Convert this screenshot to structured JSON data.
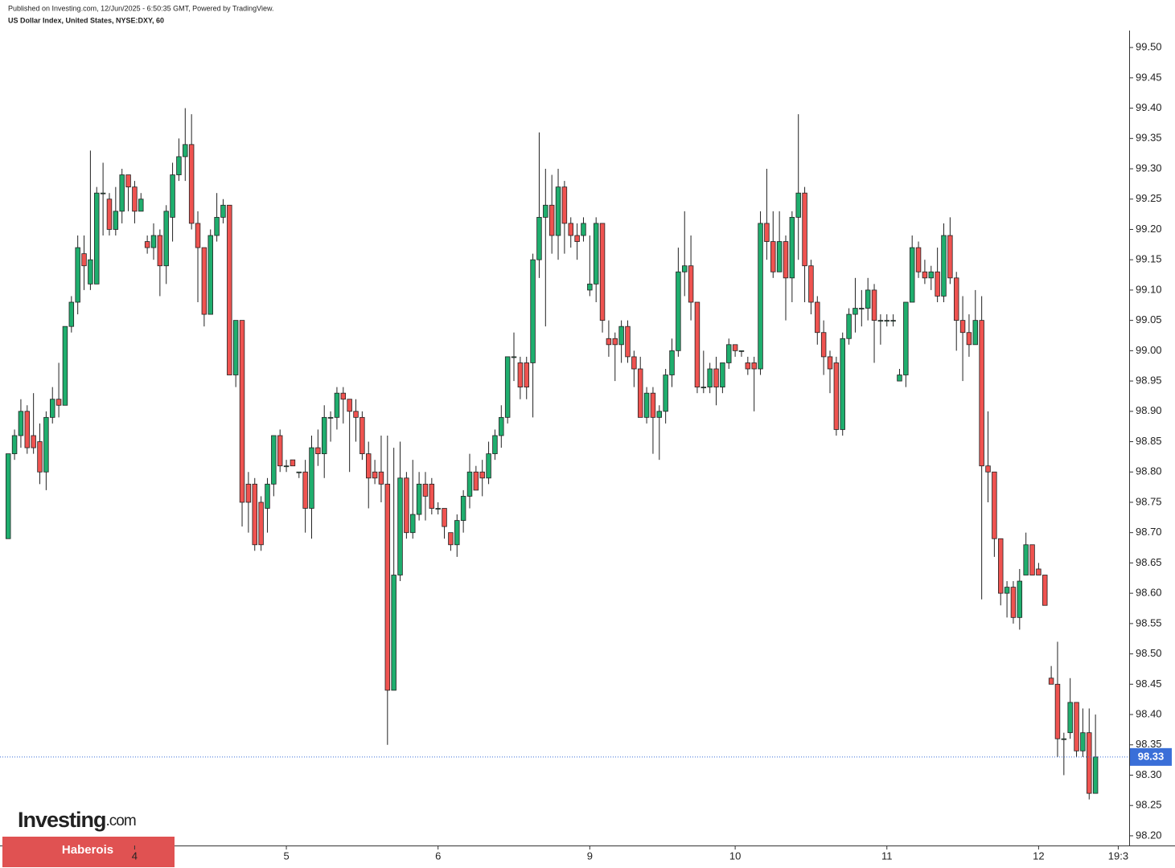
{
  "header": {
    "published": "Published on Investing.com, 12/Jun/2025 - 6:50:35 GMT, Powered by TradingView.",
    "symbol": "US Dollar Index, United States, NYSE:DXY, 60"
  },
  "watermark": {
    "brand": "Investing",
    "suffix": ".com"
  },
  "banner": "Haberois",
  "chart_data": {
    "type": "candlestick",
    "up_color": "#1fae6e",
    "down_color": "#ef5350",
    "last_price": 98.33,
    "last_price_color": "#3a6fd8",
    "open": [
      98.69,
      98.83,
      98.86,
      98.9,
      98.86,
      98.85,
      98.8,
      98.89,
      98.92,
      98.91,
      99.04,
      99.08,
      99.16,
      99.11,
      99.11,
      99.26,
      99.25,
      99.2,
      99.23,
      99.29,
      99.27,
      99.23,
      99.18,
      99.17,
      99.19,
      99.14,
      99.22,
      99.29,
      99.32,
      99.34,
      99.21,
      99.17,
      99.06,
      99.19,
      99.22,
      99.24,
      98.96,
      99.05,
      98.78,
      98.78,
      98.75,
      98.74,
      98.78,
      98.86,
      98.81,
      98.82,
      98.8,
      98.8,
      98.74,
      98.84,
      98.83,
      98.89,
      98.89,
      98.93,
      98.92,
      98.9,
      98.89,
      98.83,
      98.8,
      98.8,
      98.78,
      98.44,
      98.63,
      98.79,
      98.7,
      98.73,
      98.78,
      98.78,
      98.74,
      98.74,
      98.7,
      98.68,
      98.72,
      98.76,
      98.8,
      98.8,
      98.79,
      98.83,
      98.86,
      98.89,
      98.99,
      98.98,
      98.98,
      98.98,
      99.15,
      99.22,
      99.24,
      99.19,
      99.27,
      99.21,
      99.19,
      99.19,
      99.1,
      99.11,
      99.21,
      99.02,
      99.02,
      99.01,
      99.04,
      98.99,
      98.97,
      98.89,
      98.93,
      98.89,
      98.9,
      98.96,
      99.0,
      99.13,
      99.14,
      99.08,
      98.94,
      98.94,
      98.97,
      98.94,
      98.98,
      99.01,
      99.0,
      98.98,
      98.98,
      98.97,
      99.21,
      99.18,
      99.13,
      99.18,
      99.12,
      99.22,
      99.26,
      99.14,
      99.08,
      99.03,
      98.99,
      98.98,
      98.87,
      99.02,
      99.06,
      99.07,
      99.07,
      99.1,
      99.05,
      99.05,
      99.05,
      98.95,
      98.96,
      99.08,
      99.17,
      99.13,
      99.12,
      99.13,
      99.09,
      99.19,
      99.12,
      99.05,
      99.03,
      99.01,
      99.05,
      98.81,
      98.8,
      98.69,
      98.6,
      98.61,
      98.56,
      98.63,
      98.68,
      98.64,
      98.63,
      98.46,
      98.45,
      98.36,
      98.37,
      98.42,
      98.34,
      98.37,
      98.27
    ],
    "high": [
      98.83,
      98.87,
      98.92,
      98.91,
      98.93,
      98.88,
      98.9,
      98.94,
      98.98,
      99.04,
      99.09,
      99.19,
      99.19,
      99.33,
      99.27,
      99.31,
      99.26,
      99.27,
      99.3,
      99.29,
      99.28,
      99.26,
      99.19,
      99.21,
      99.2,
      99.24,
      99.31,
      99.35,
      99.4,
      99.39,
      99.23,
      99.17,
      99.2,
      99.26,
      99.25,
      99.24,
      99.05,
      99.05,
      98.8,
      98.79,
      98.76,
      98.79,
      98.86,
      98.87,
      98.82,
      98.82,
      98.8,
      98.82,
      98.86,
      98.87,
      98.91,
      98.9,
      98.94,
      98.94,
      98.92,
      98.92,
      98.9,
      98.85,
      98.82,
      98.86,
      98.86,
      98.84,
      98.85,
      98.8,
      98.82,
      98.8,
      98.8,
      98.79,
      98.75,
      98.74,
      98.7,
      98.73,
      98.77,
      98.83,
      98.81,
      98.82,
      98.85,
      98.87,
      98.91,
      98.99,
      99.03,
      98.99,
      98.99,
      99.16,
      99.36,
      99.3,
      99.29,
      99.3,
      99.28,
      99.22,
      99.21,
      99.22,
      99.19,
      99.22,
      99.21,
      99.05,
      99.03,
      99.05,
      99.05,
      99.0,
      98.99,
      98.94,
      98.94,
      98.91,
      98.97,
      99.02,
      99.17,
      99.23,
      99.19,
      99.08,
      99.0,
      98.98,
      98.99,
      98.98,
      99.02,
      99.01,
      99.0,
      98.99,
      98.99,
      99.23,
      99.3,
      99.23,
      99.23,
      99.19,
      99.23,
      99.39,
      99.27,
      99.15,
      99.09,
      99.05,
      99.0,
      98.99,
      99.03,
      99.07,
      99.12,
      99.1,
      99.12,
      99.11,
      99.06,
      99.06,
      99.06,
      98.97,
      99.08,
      99.19,
      99.18,
      99.15,
      99.14,
      99.17,
      99.21,
      99.22,
      99.13,
      99.09,
      99.06,
      99.1,
      99.09,
      98.9,
      98.8,
      98.69,
      98.62,
      98.62,
      98.64,
      98.7,
      98.68,
      98.65,
      98.63,
      98.48,
      98.52,
      98.37,
      98.46,
      98.42,
      98.41,
      98.41,
      98.4
    ],
    "low": [
      98.69,
      98.82,
      98.84,
      98.83,
      98.83,
      98.78,
      98.77,
      98.88,
      98.89,
      98.91,
      99.03,
      99.06,
      99.1,
      99.1,
      99.11,
      99.19,
      99.19,
      99.19,
      99.21,
      99.23,
      99.21,
      99.23,
      99.16,
      99.15,
      99.09,
      99.11,
      99.18,
      99.28,
      99.28,
      99.2,
      99.08,
      99.04,
      99.06,
      99.18,
      99.21,
      98.96,
      98.94,
      98.71,
      98.7,
      98.67,
      98.67,
      98.7,
      98.76,
      98.8,
      98.8,
      98.81,
      98.79,
      98.7,
      98.69,
      98.81,
      98.79,
      98.85,
      98.87,
      98.88,
      98.8,
      98.85,
      98.82,
      98.74,
      98.78,
      98.75,
      98.35,
      98.44,
      98.62,
      98.69,
      98.69,
      98.72,
      98.72,
      98.73,
      98.73,
      98.69,
      98.67,
      98.66,
      98.7,
      98.74,
      98.77,
      98.76,
      98.78,
      98.82,
      98.84,
      98.88,
      98.95,
      98.92,
      98.92,
      98.89,
      99.12,
      99.04,
      99.16,
      99.15,
      99.16,
      99.17,
      99.15,
      99.18,
      99.09,
      99.08,
      99.03,
      98.99,
      98.95,
      98.98,
      98.98,
      98.94,
      98.89,
      98.88,
      98.83,
      98.82,
      98.88,
      98.94,
      98.99,
      99.09,
      99.05,
      98.93,
      98.93,
      98.93,
      98.91,
      98.93,
      98.97,
      98.99,
      98.99,
      98.96,
      98.9,
      98.96,
      99.15,
      99.12,
      99.13,
      99.05,
      99.08,
      99.15,
      99.08,
      99.06,
      99.01,
      98.96,
      98.93,
      98.86,
      98.86,
      99.01,
      99.03,
      99.04,
      99.05,
      98.98,
      99.01,
      99.04,
      99.04,
      98.95,
      98.94,
      99.08,
      99.12,
      99.11,
      99.1,
      99.08,
      99.08,
      99.11,
      99.0,
      98.95,
      98.99,
      99.01,
      98.59,
      98.75,
      98.66,
      98.58,
      98.56,
      98.55,
      98.54,
      98.63,
      98.63,
      98.63,
      98.58,
      98.45,
      98.33,
      98.3,
      98.36,
      98.33,
      98.33,
      98.26,
      98.27
    ],
    "close": [
      98.83,
      98.86,
      98.9,
      98.84,
      98.84,
      98.8,
      98.89,
      98.92,
      98.91,
      99.04,
      99.08,
      99.17,
      99.14,
      99.15,
      99.26,
      99.26,
      99.2,
      99.23,
      99.29,
      99.27,
      99.23,
      99.25,
      99.17,
      99.19,
      99.14,
      99.23,
      99.29,
      99.32,
      99.34,
      99.21,
      99.17,
      99.06,
      99.19,
      99.22,
      99.24,
      98.96,
      99.05,
      98.75,
      98.75,
      98.68,
      98.68,
      98.78,
      98.86,
      98.81,
      98.81,
      98.81,
      98.8,
      98.74,
      98.84,
      98.83,
      98.89,
      98.89,
      98.93,
      98.92,
      98.9,
      98.89,
      98.83,
      98.79,
      98.79,
      98.78,
      98.44,
      98.63,
      98.79,
      98.7,
      98.73,
      98.78,
      98.76,
      98.74,
      98.74,
      98.71,
      98.68,
      98.72,
      98.76,
      98.8,
      98.77,
      98.79,
      98.83,
      98.86,
      98.89,
      98.99,
      98.99,
      98.94,
      98.94,
      99.15,
      99.22,
      99.24,
      99.19,
      99.27,
      99.21,
      99.19,
      99.18,
      99.21,
      99.11,
      99.21,
      99.05,
      99.01,
      99.01,
      99.04,
      98.99,
      98.97,
      98.89,
      98.93,
      98.89,
      98.9,
      98.96,
      99.0,
      99.13,
      99.14,
      99.08,
      98.94,
      98.94,
      98.97,
      98.94,
      98.98,
      99.01,
      99.0,
      99.0,
      98.97,
      98.97,
      99.21,
      99.18,
      99.13,
      99.18,
      99.12,
      99.22,
      99.26,
      99.14,
      99.08,
      99.03,
      98.99,
      98.97,
      98.87,
      99.02,
      99.06,
      99.07,
      99.07,
      99.1,
      99.05,
      99.05,
      99.05,
      99.05,
      98.96,
      99.08,
      99.17,
      99.13,
      99.12,
      99.13,
      99.09,
      99.19,
      99.12,
      99.05,
      99.03,
      99.01,
      99.05,
      98.81,
      98.8,
      98.69,
      98.6,
      98.61,
      98.56,
      98.62,
      98.68,
      98.63,
      98.63,
      98.58,
      98.45,
      98.36,
      98.36,
      98.42,
      98.34,
      98.37,
      98.27,
      98.33
    ],
    "xlim": [
      -1.3,
      177.2
    ],
    "xticks": [
      {
        "value": 20,
        "label": "4"
      },
      {
        "value": 44,
        "label": "5"
      },
      {
        "value": 68,
        "label": "6"
      },
      {
        "value": 92,
        "label": "9"
      },
      {
        "value": 115,
        "label": "10"
      },
      {
        "value": 139,
        "label": "11"
      },
      {
        "value": 163,
        "label": "12"
      },
      {
        "value": 175.6,
        "label": "19:3"
      }
    ],
    "ylim": [
      98.184,
      99.528
    ],
    "yticks": [
      {
        "value": 98.2,
        "label": "98.20"
      },
      {
        "value": 98.25,
        "label": "98.25"
      },
      {
        "value": 98.3,
        "label": "98.30"
      },
      {
        "value": 98.35,
        "label": "98.35"
      },
      {
        "value": 98.4,
        "label": "98.40"
      },
      {
        "value": 98.45,
        "label": "98.45"
      },
      {
        "value": 98.5,
        "label": "98.50"
      },
      {
        "value": 98.55,
        "label": "98.55"
      },
      {
        "value": 98.6,
        "label": "98.60"
      },
      {
        "value": 98.65,
        "label": "98.65"
      },
      {
        "value": 98.7,
        "label": "98.70"
      },
      {
        "value": 98.75,
        "label": "98.75"
      },
      {
        "value": 98.8,
        "label": "98.80"
      },
      {
        "value": 98.85,
        "label": "98.85"
      },
      {
        "value": 98.9,
        "label": "98.90"
      },
      {
        "value": 98.95,
        "label": "98.95"
      },
      {
        "value": 99.0,
        "label": "99.00"
      },
      {
        "value": 99.05,
        "label": "99.05"
      },
      {
        "value": 99.1,
        "label": "99.10"
      },
      {
        "value": 99.15,
        "label": "99.15"
      },
      {
        "value": 99.2,
        "label": "99.20"
      },
      {
        "value": 99.25,
        "label": "99.25"
      },
      {
        "value": 99.3,
        "label": "99.30"
      },
      {
        "value": 99.35,
        "label": "99.35"
      },
      {
        "value": 99.4,
        "label": "99.40"
      },
      {
        "value": 99.45,
        "label": "99.45"
      },
      {
        "value": 99.5,
        "label": "99.50"
      }
    ]
  }
}
